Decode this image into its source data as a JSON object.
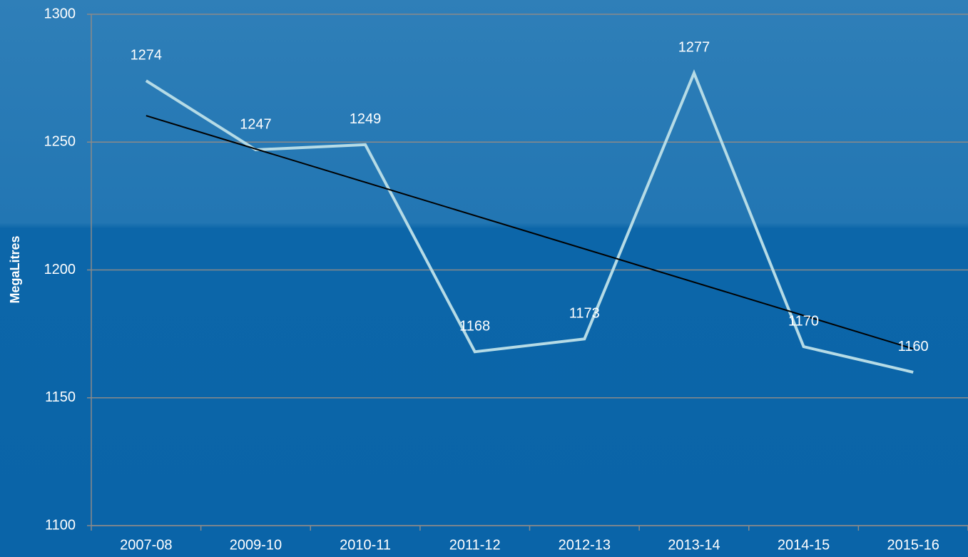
{
  "chart_data": {
    "type": "line",
    "y_label": "MegaLitres",
    "categories": [
      "2007-08",
      "2009-10",
      "2010-11",
      "2011-12",
      "2012-13",
      "2013-14",
      "2014-15",
      "2015-16"
    ],
    "values": [
      1274,
      1247,
      1249,
      1168,
      1173,
      1277,
      1170,
      1160
    ],
    "color": "#b5dbe6",
    "ylim": [
      1100,
      1300
    ],
    "yticks": [
      1100,
      1150,
      1200,
      1250,
      1300
    ],
    "grid": true,
    "data_labels": true,
    "trendline": {
      "type": "linear",
      "color": "#000000"
    }
  }
}
